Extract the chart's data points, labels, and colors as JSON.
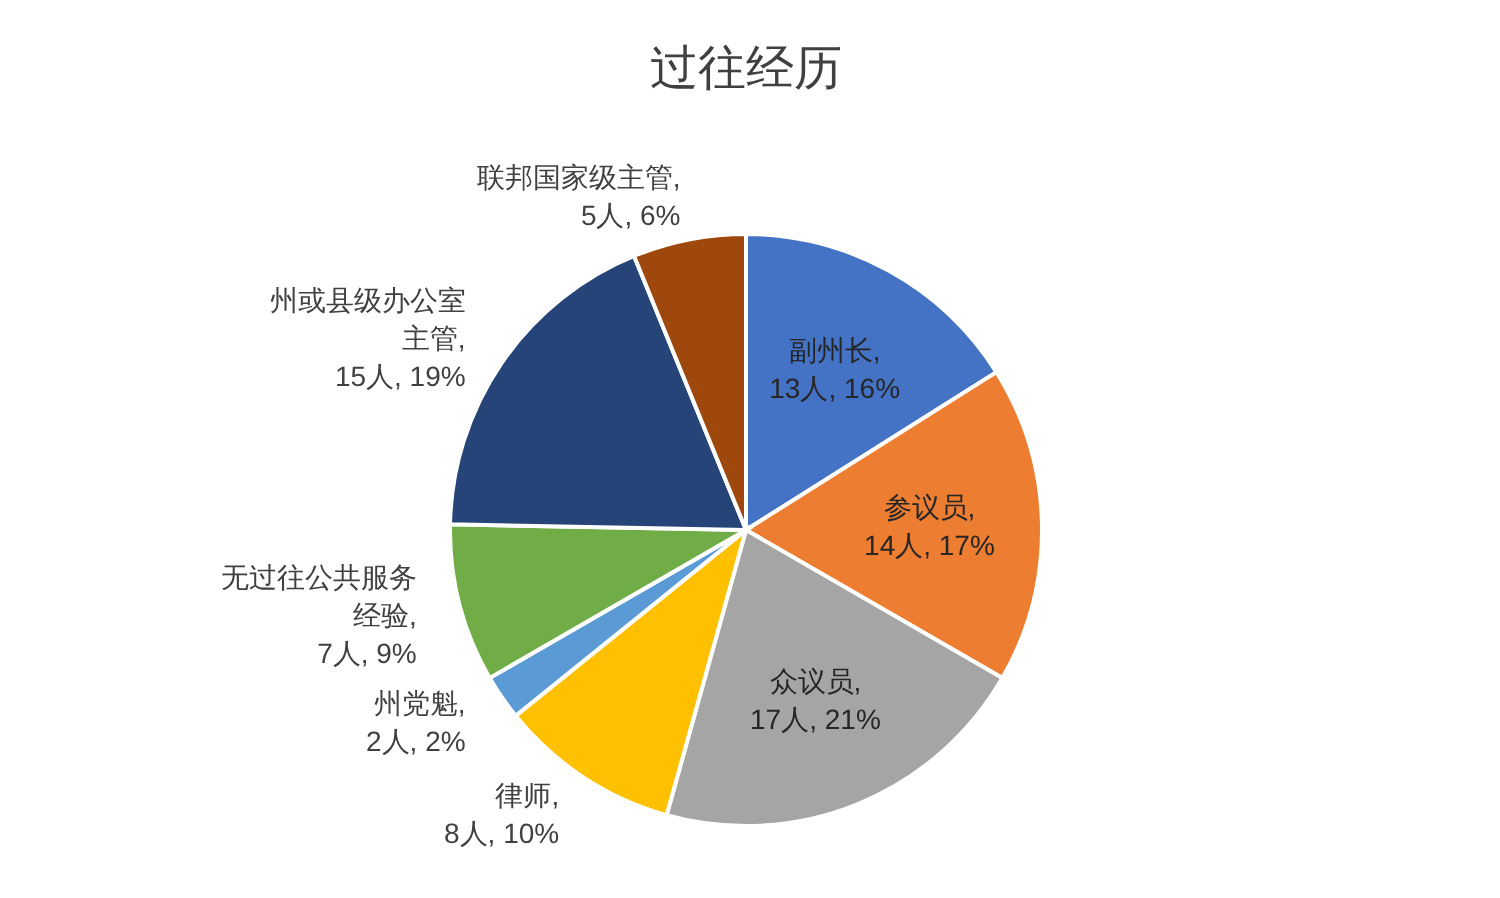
{
  "chart_data": {
    "type": "pie",
    "title": "过往经历",
    "categories": [
      "副州长",
      "参议员",
      "众议员",
      "律师",
      "州党魁",
      "无过往公共服务经验",
      "州或县级办公室主管",
      "联邦国家级主管"
    ],
    "values": [
      13,
      14,
      17,
      8,
      2,
      7,
      15,
      5
    ],
    "colors": [
      "#4472c4",
      "#ed7d31",
      "#a5a5a5",
      "#ffc000",
      "#5b9bd5",
      "#70ad47",
      "#264478",
      "#9e480e"
    ],
    "value_labels": [
      ", 13人, 16%",
      ", 14人, 17%",
      ", 17人, 21%",
      ", 8人, 10%",
      ", 2人, 2%",
      ", 7人, 9%",
      ", 15人, 19%",
      ", 5人, 6%"
    ],
    "legend": false
  }
}
